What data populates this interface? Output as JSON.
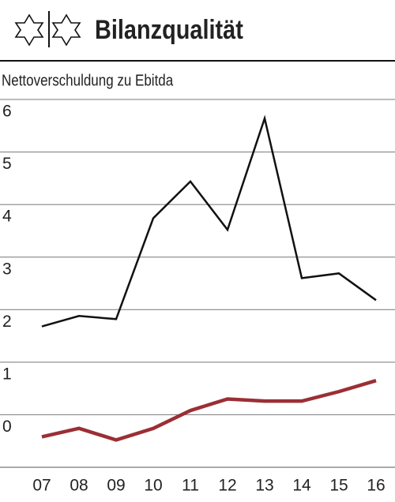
{
  "chart_data": {
    "type": "line",
    "title": "Bilanzqualität",
    "subtitle": "Nettoverschuldung zu Ebitda",
    "categories": [
      "07",
      "08",
      "09",
      "10",
      "11",
      "12",
      "13",
      "14",
      "15",
      "16"
    ],
    "series": [
      {
        "color": "#111111",
        "values": [
          1.68,
          1.88,
          1.82,
          3.74,
          4.44,
          3.52,
          5.64,
          2.6,
          2.69,
          2.18
        ]
      },
      {
        "color": "#9b2f35",
        "values": [
          -0.42,
          -0.26,
          -0.48,
          -0.26,
          0.08,
          0.3,
          0.26,
          0.26,
          0.44,
          0.65
        ]
      }
    ],
    "ylim": [
      -1,
      6
    ],
    "yticks": [
      0,
      1,
      2,
      3,
      4,
      5,
      6
    ],
    "grid": true
  }
}
